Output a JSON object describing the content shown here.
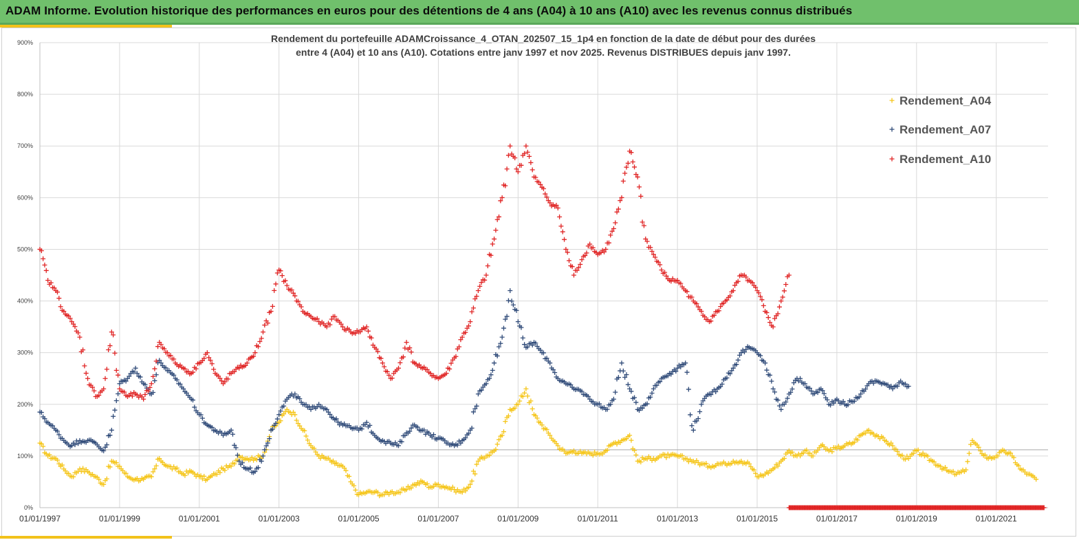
{
  "banner": {
    "title": "ADAM Informe. Evolution historique des performances en euros pour des détentions de 4 ans (A04) à 10 ans (A10) avec les revenus connus distribués"
  },
  "colors": {
    "banner": "#70c06c",
    "accent": "#f2c21b",
    "A04": "#f5c518",
    "A07": "#2f4a78",
    "A10": "#e02424"
  },
  "chart_data": {
    "type": "scatter",
    "title": [
      "Rendement du portefeuille ADAMCroissance_4_OTAN_202507_15_1p4  en fonction de la date de début pour des durées",
      "entre 4 (A04) et 10 ans (A10). Cotations  entre janv 1997 et nov 2025. Revenus DISTRIBUES depuis janv 1997."
    ],
    "xlabel": "",
    "ylabel": "",
    "xlim": [
      1997.0,
      2022.3
    ],
    "ylim": [
      0,
      900
    ],
    "grid": true,
    "legend_position": "top-right",
    "y_ticks": [
      {
        "value": 0,
        "label": "0%"
      },
      {
        "value": 100,
        "label": "100%"
      },
      {
        "value": 200,
        "label": "200%"
      },
      {
        "value": 300,
        "label": "300%"
      },
      {
        "value": 400,
        "label": "400%"
      },
      {
        "value": 500,
        "label": "500%"
      },
      {
        "value": 600,
        "label": "600%"
      },
      {
        "value": 700,
        "label": "700%"
      },
      {
        "value": 800,
        "label": "800%"
      },
      {
        "value": 900,
        "label": "900%"
      }
    ],
    "x_ticks": [
      {
        "value": 1997,
        "label": "01/01/1997"
      },
      {
        "value": 1999,
        "label": "01/01/1999"
      },
      {
        "value": 2001,
        "label": "01/01/2001"
      },
      {
        "value": 2003,
        "label": "01/01/2003"
      },
      {
        "value": 2005,
        "label": "01/01/2005"
      },
      {
        "value": 2007,
        "label": "01/01/2007"
      },
      {
        "value": 2009,
        "label": "01/01/2009"
      },
      {
        "value": 2011,
        "label": "01/01/2011"
      },
      {
        "value": 2013,
        "label": "01/01/2013"
      },
      {
        "value": 2015,
        "label": "01/01/2015"
      },
      {
        "value": 2017,
        "label": "01/01/2017"
      },
      {
        "value": 2019,
        "label": "01/01/2019"
      },
      {
        "value": 2021,
        "label": "01/01/2021"
      }
    ],
    "reference_line": 112,
    "series": [
      {
        "name": "Rendement_A04",
        "color": "#f5c518",
        "x": [
          1997.0,
          1997.2,
          1997.4,
          1997.6,
          1997.8,
          1998.0,
          1998.2,
          1998.4,
          1998.6,
          1998.8,
          1999.0,
          1999.2,
          1999.4,
          1999.6,
          1999.8,
          2000.0,
          2000.2,
          2000.4,
          2000.6,
          2000.8,
          2001.0,
          2001.2,
          2001.4,
          2001.6,
          2001.8,
          2002.0,
          2002.2,
          2002.4,
          2002.6,
          2002.8,
          2003.0,
          2003.2,
          2003.4,
          2003.6,
          2003.8,
          2004.0,
          2004.2,
          2004.4,
          2004.6,
          2004.8,
          2005.0,
          2005.2,
          2005.4,
          2005.6,
          2005.8,
          2006.0,
          2006.2,
          2006.4,
          2006.6,
          2006.8,
          2007.0,
          2007.2,
          2007.4,
          2007.6,
          2007.8,
          2008.0,
          2008.2,
          2008.4,
          2008.6,
          2008.8,
          2009.0,
          2009.2,
          2009.4,
          2009.6,
          2009.8,
          2010.0,
          2010.2,
          2010.4,
          2010.6,
          2010.8,
          2011.0,
          2011.2,
          2011.4,
          2011.6,
          2011.8,
          2012.0,
          2012.2,
          2012.4,
          2012.6,
          2012.8,
          2013.0,
          2013.2,
          2013.4,
          2013.6,
          2013.8,
          2014.0,
          2014.2,
          2014.4,
          2014.6,
          2014.8,
          2015.0,
          2015.2,
          2015.4,
          2015.6,
          2015.8,
          2016.0,
          2016.2,
          2016.4,
          2016.6,
          2016.8,
          2017.0,
          2017.2,
          2017.4,
          2017.6,
          2017.8,
          2018.0,
          2018.2,
          2018.4,
          2018.6,
          2018.8,
          2019.0,
          2019.2,
          2019.4,
          2019.6,
          2019.8,
          2020.0,
          2020.2,
          2020.4,
          2020.6,
          2020.8,
          2021.0,
          2021.2,
          2021.4,
          2021.6,
          2021.8,
          2022.0
        ],
        "y": [
          125,
          100,
          95,
          75,
          60,
          75,
          70,
          60,
          45,
          90,
          80,
          60,
          55,
          55,
          60,
          95,
          80,
          75,
          65,
          70,
          60,
          55,
          65,
          75,
          80,
          100,
          95,
          95,
          100,
          150,
          165,
          190,
          180,
          150,
          120,
          100,
          95,
          85,
          80,
          50,
          25,
          30,
          30,
          25,
          30,
          30,
          35,
          45,
          50,
          40,
          45,
          40,
          35,
          30,
          45,
          90,
          100,
          110,
          140,
          190,
          200,
          230,
          180,
          160,
          140,
          120,
          105,
          110,
          105,
          105,
          105,
          110,
          125,
          130,
          140,
          90,
          95,
          95,
          100,
          100,
          100,
          95,
          90,
          85,
          80,
          85,
          85,
          90,
          90,
          85,
          60,
          65,
          75,
          90,
          110,
          100,
          110,
          100,
          120,
          110,
          115,
          120,
          125,
          140,
          150,
          140,
          130,
          120,
          100,
          95,
          110,
          100,
          90,
          80,
          70,
          65,
          70,
          130,
          110,
          95,
          100,
          110,
          100,
          75,
          65,
          55
        ]
      },
      {
        "name": "Rendement_A07",
        "color": "#2f4a78",
        "x": [
          1997.0,
          1997.2,
          1997.4,
          1997.6,
          1997.8,
          1998.0,
          1998.2,
          1998.4,
          1998.6,
          1998.8,
          1999.0,
          1999.2,
          1999.4,
          1999.6,
          1999.8,
          2000.0,
          2000.2,
          2000.4,
          2000.6,
          2000.8,
          2001.0,
          2001.2,
          2001.4,
          2001.6,
          2001.8,
          2002.0,
          2002.2,
          2002.4,
          2002.6,
          2002.8,
          2003.0,
          2003.2,
          2003.4,
          2003.6,
          2003.8,
          2004.0,
          2004.2,
          2004.4,
          2004.6,
          2004.8,
          2005.0,
          2005.2,
          2005.4,
          2005.6,
          2005.8,
          2006.0,
          2006.2,
          2006.4,
          2006.6,
          2006.8,
          2007.0,
          2007.2,
          2007.4,
          2007.6,
          2007.8,
          2008.0,
          2008.2,
          2008.4,
          2008.6,
          2008.8,
          2009.0,
          2009.2,
          2009.4,
          2009.6,
          2009.8,
          2010.0,
          2010.2,
          2010.4,
          2010.6,
          2010.8,
          2011.0,
          2011.2,
          2011.4,
          2011.6,
          2011.8,
          2012.0,
          2012.2,
          2012.4,
          2012.6,
          2012.8,
          2013.0,
          2013.2,
          2013.4,
          2013.6,
          2013.8,
          2014.0,
          2014.2,
          2014.4,
          2014.6,
          2014.8,
          2015.0,
          2015.2,
          2015.4,
          2015.6,
          2015.8,
          2016.0,
          2016.2,
          2016.4,
          2016.6,
          2016.8,
          2017.0,
          2017.2,
          2017.4,
          2017.6,
          2017.8,
          2018.0,
          2018.2,
          2018.4,
          2018.6,
          2018.8
        ],
        "y": [
          185,
          165,
          150,
          130,
          120,
          130,
          130,
          125,
          110,
          150,
          240,
          250,
          270,
          240,
          220,
          285,
          265,
          250,
          230,
          210,
          180,
          160,
          150,
          140,
          150,
          90,
          75,
          70,
          100,
          150,
          180,
          210,
          220,
          200,
          190,
          200,
          190,
          170,
          160,
          155,
          150,
          165,
          140,
          130,
          125,
          120,
          145,
          160,
          150,
          140,
          135,
          125,
          120,
          130,
          150,
          220,
          240,
          280,
          330,
          420,
          360,
          310,
          320,
          300,
          280,
          250,
          240,
          230,
          225,
          210,
          200,
          190,
          210,
          280,
          230,
          190,
          200,
          230,
          250,
          260,
          270,
          280,
          150,
          200,
          220,
          230,
          250,
          270,
          300,
          310,
          300,
          280,
          230,
          190,
          220,
          250,
          240,
          220,
          230,
          200,
          210,
          200,
          205,
          220,
          240,
          245,
          240,
          230,
          245,
          235
        ]
      },
      {
        "name": "Rendement_A10",
        "color": "#e02424",
        "x": [
          1997.0,
          1997.2,
          1997.4,
          1997.6,
          1997.8,
          1998.0,
          1998.2,
          1998.4,
          1998.6,
          1998.8,
          1999.0,
          1999.2,
          1999.4,
          1999.6,
          1999.8,
          2000.0,
          2000.2,
          2000.4,
          2000.6,
          2000.8,
          2001.0,
          2001.2,
          2001.4,
          2001.6,
          2001.8,
          2002.0,
          2002.2,
          2002.4,
          2002.6,
          2002.8,
          2003.0,
          2003.2,
          2003.4,
          2003.6,
          2003.8,
          2004.0,
          2004.2,
          2004.4,
          2004.6,
          2004.8,
          2005.0,
          2005.2,
          2005.4,
          2005.6,
          2005.8,
          2006.0,
          2006.2,
          2006.4,
          2006.6,
          2006.8,
          2007.0,
          2007.2,
          2007.4,
          2007.6,
          2007.8,
          2008.0,
          2008.2,
          2008.4,
          2008.6,
          2008.8,
          2009.0,
          2009.2,
          2009.4,
          2009.6,
          2009.8,
          2010.0,
          2010.2,
          2010.4,
          2010.6,
          2010.8,
          2011.0,
          2011.2,
          2011.4,
          2011.6,
          2011.8,
          2012.0,
          2012.2,
          2012.4,
          2012.6,
          2012.8,
          2013.0,
          2013.2,
          2013.4,
          2013.6,
          2013.8,
          2014.0,
          2014.2,
          2014.4,
          2014.6,
          2014.8,
          2015.0,
          2015.2,
          2015.4,
          2015.6,
          2015.8
        ],
        "y": [
          500,
          440,
          420,
          380,
          360,
          330,
          250,
          215,
          230,
          340,
          230,
          215,
          220,
          210,
          240,
          320,
          300,
          280,
          270,
          260,
          280,
          300,
          260,
          240,
          260,
          270,
          280,
          300,
          340,
          380,
          460,
          430,
          410,
          380,
          370,
          360,
          350,
          370,
          350,
          340,
          340,
          350,
          310,
          280,
          250,
          270,
          320,
          280,
          270,
          260,
          250,
          260,
          290,
          330,
          360,
          420,
          450,
          520,
          600,
          700,
          650,
          700,
          640,
          620,
          590,
          580,
          500,
          450,
          480,
          510,
          490,
          500,
          540,
          600,
          690,
          640,
          520,
          490,
          460,
          440,
          440,
          420,
          400,
          380,
          360,
          380,
          400,
          420,
          450,
          440,
          420,
          380,
          350,
          400,
          450
        ]
      },
      {
        "name": "Rendement_A10_tail",
        "legend": false,
        "color": "#e02424",
        "x": [
          2015.8,
          2016.0,
          2016.2,
          2016.4,
          2016.6,
          2016.8,
          2017.0,
          2017.2,
          2017.4,
          2017.6,
          2017.8,
          2018.0,
          2018.2,
          2018.4,
          2018.6,
          2018.8,
          2019.0,
          2019.2,
          2019.4,
          2019.6,
          2019.8,
          2020.0,
          2020.2,
          2020.4,
          2020.6,
          2020.8,
          2021.0,
          2021.2,
          2021.4,
          2021.6,
          2021.8,
          2022.0,
          2022.2
        ],
        "y": [
          0,
          0,
          0,
          0,
          0,
          0,
          0,
          0,
          0,
          0,
          0,
          0,
          0,
          0,
          0,
          0,
          0,
          0,
          0,
          0,
          0,
          0,
          0,
          0,
          0,
          0,
          0,
          0,
          0,
          0,
          0,
          0,
          0
        ]
      }
    ],
    "legend": [
      "Rendement_A04",
      "Rendement_A07",
      "Rendement_A10"
    ]
  }
}
